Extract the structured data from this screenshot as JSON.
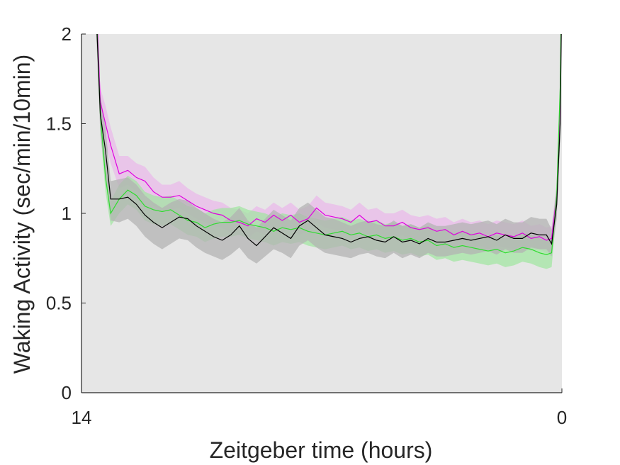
{
  "chart_data": {
    "type": "line",
    "xlabel": "Zeitgeber time (hours)",
    "ylabel": "Waking Activity (sec/min/10min)",
    "xlim": [
      14,
      0
    ],
    "x_reversed": true,
    "ylim": [
      0,
      2
    ],
    "xticks": [
      14,
      0
    ],
    "yticks": [
      0,
      0.5,
      1,
      1.5,
      2
    ],
    "grid": false,
    "legend": "none",
    "background": "#e6e6e6",
    "series": [
      {
        "color": "#e000e0",
        "band_color": "#e9b6ea",
        "x": [
          13.6,
          13.45,
          13.3,
          13.15,
          12.9,
          12.65,
          12.4,
          12.15,
          11.9,
          11.65,
          11.4,
          11.15,
          10.9,
          10.65,
          10.4,
          10.15,
          9.9,
          9.65,
          9.4,
          9.15,
          8.9,
          8.65,
          8.4,
          8.15,
          7.9,
          7.65,
          7.4,
          7.15,
          6.9,
          6.65,
          6.4,
          6.15,
          5.9,
          5.65,
          5.4,
          5.15,
          4.9,
          4.65,
          4.4,
          4.15,
          3.9,
          3.65,
          3.4,
          3.15,
          2.9,
          2.65,
          2.4,
          2.15,
          1.9,
          1.65,
          1.4,
          1.15,
          0.9,
          0.65,
          0.45,
          0.3,
          0.15,
          0.05,
          0.0
        ],
        "values": [
          2.35,
          1.62,
          1.5,
          1.38,
          1.22,
          1.24,
          1.2,
          1.18,
          1.12,
          1.09,
          1.09,
          1.1,
          1.07,
          1.04,
          1.02,
          1.0,
          0.99,
          0.96,
          0.95,
          0.93,
          0.97,
          0.95,
          0.99,
          0.96,
          0.99,
          0.95,
          0.97,
          1.03,
          0.99,
          0.98,
          0.97,
          0.95,
          0.99,
          0.95,
          0.96,
          0.93,
          0.93,
          0.95,
          0.92,
          0.91,
          0.92,
          0.9,
          0.91,
          0.88,
          0.9,
          0.88,
          0.89,
          0.87,
          0.89,
          0.88,
          0.87,
          0.89,
          0.86,
          0.87,
          0.85,
          0.86,
          1.1,
          1.6,
          2.4
        ],
        "lower": [
          2.25,
          1.54,
          1.4,
          1.28,
          1.14,
          1.16,
          1.12,
          1.1,
          1.04,
          1.02,
          1.02,
          1.03,
          1.0,
          0.97,
          0.95,
          0.93,
          0.92,
          0.89,
          0.88,
          0.86,
          0.9,
          0.88,
          0.92,
          0.89,
          0.92,
          0.88,
          0.9,
          0.95,
          0.92,
          0.91,
          0.9,
          0.88,
          0.92,
          0.88,
          0.89,
          0.86,
          0.86,
          0.88,
          0.85,
          0.84,
          0.85,
          0.83,
          0.84,
          0.81,
          0.83,
          0.81,
          0.82,
          0.8,
          0.82,
          0.81,
          0.8,
          0.82,
          0.79,
          0.8,
          0.78,
          0.79,
          1.03,
          1.52,
          2.3
        ],
        "upper": [
          2.45,
          1.7,
          1.6,
          1.48,
          1.32,
          1.32,
          1.28,
          1.26,
          1.2,
          1.16,
          1.16,
          1.18,
          1.14,
          1.11,
          1.09,
          1.07,
          1.06,
          1.03,
          1.02,
          1.0,
          1.04,
          1.02,
          1.06,
          1.03,
          1.06,
          1.02,
          1.04,
          1.1,
          1.06,
          1.05,
          1.04,
          1.02,
          1.06,
          1.02,
          1.03,
          1.0,
          1.0,
          1.02,
          0.99,
          0.98,
          0.99,
          0.97,
          0.98,
          0.95,
          0.97,
          0.95,
          0.96,
          0.94,
          0.96,
          0.95,
          0.94,
          0.96,
          0.93,
          0.94,
          0.92,
          0.93,
          1.17,
          1.68,
          2.5
        ]
      },
      {
        "color": "#2fdc2f",
        "band_color": "#9ee69e",
        "x": [
          13.6,
          13.45,
          13.3,
          13.15,
          12.9,
          12.65,
          12.4,
          12.15,
          11.9,
          11.65,
          11.4,
          11.15,
          10.9,
          10.65,
          10.4,
          10.15,
          9.9,
          9.65,
          9.4,
          9.15,
          8.9,
          8.65,
          8.4,
          8.15,
          7.9,
          7.65,
          7.4,
          7.15,
          6.9,
          6.65,
          6.4,
          6.15,
          5.9,
          5.65,
          5.4,
          5.15,
          4.9,
          4.65,
          4.4,
          4.15,
          3.9,
          3.65,
          3.4,
          3.15,
          2.9,
          2.65,
          2.4,
          2.15,
          1.9,
          1.65,
          1.4,
          1.15,
          0.9,
          0.65,
          0.45,
          0.3,
          0.15,
          0.05,
          0.0
        ],
        "values": [
          2.3,
          1.55,
          1.2,
          1.0,
          1.08,
          1.13,
          1.1,
          1.04,
          1.02,
          1.01,
          1.02,
          0.99,
          0.96,
          0.95,
          0.92,
          0.94,
          0.95,
          0.95,
          0.96,
          0.94,
          0.93,
          0.92,
          0.9,
          0.92,
          0.91,
          0.92,
          0.9,
          0.89,
          0.88,
          0.89,
          0.9,
          0.88,
          0.89,
          0.87,
          0.88,
          0.86,
          0.87,
          0.85,
          0.86,
          0.84,
          0.85,
          0.82,
          0.83,
          0.81,
          0.82,
          0.81,
          0.8,
          0.79,
          0.8,
          0.78,
          0.79,
          0.81,
          0.8,
          0.78,
          0.77,
          0.78,
          1.1,
          1.7,
          2.4
        ],
        "lower": [
          2.2,
          1.46,
          1.12,
          0.93,
          1.0,
          1.05,
          1.02,
          0.96,
          0.94,
          0.93,
          0.94,
          0.91,
          0.88,
          0.87,
          0.84,
          0.86,
          0.87,
          0.87,
          0.88,
          0.86,
          0.85,
          0.84,
          0.82,
          0.84,
          0.83,
          0.84,
          0.82,
          0.81,
          0.8,
          0.81,
          0.82,
          0.8,
          0.81,
          0.79,
          0.8,
          0.78,
          0.79,
          0.77,
          0.78,
          0.76,
          0.77,
          0.74,
          0.75,
          0.73,
          0.74,
          0.73,
          0.72,
          0.71,
          0.72,
          0.7,
          0.71,
          0.73,
          0.72,
          0.7,
          0.69,
          0.7,
          1.02,
          1.62,
          2.3
        ],
        "upper": [
          2.4,
          1.64,
          1.28,
          1.07,
          1.16,
          1.21,
          1.18,
          1.12,
          1.1,
          1.09,
          1.1,
          1.07,
          1.04,
          1.03,
          1.0,
          1.02,
          1.03,
          1.03,
          1.04,
          1.02,
          1.01,
          1.0,
          0.98,
          1.0,
          0.99,
          1.0,
          0.98,
          0.97,
          0.96,
          0.97,
          0.98,
          0.96,
          0.97,
          0.95,
          0.96,
          0.94,
          0.95,
          0.93,
          0.94,
          0.92,
          0.93,
          0.9,
          0.91,
          0.89,
          0.9,
          0.89,
          0.88,
          0.87,
          0.88,
          0.86,
          0.87,
          0.89,
          0.88,
          0.86,
          0.85,
          0.86,
          1.18,
          1.78,
          2.5
        ]
      },
      {
        "color": "#000000",
        "band_color": "#b3b3b3",
        "x": [
          13.6,
          13.45,
          13.3,
          13.15,
          12.9,
          12.65,
          12.4,
          12.15,
          11.9,
          11.65,
          11.4,
          11.15,
          10.9,
          10.65,
          10.4,
          10.15,
          9.9,
          9.65,
          9.4,
          9.15,
          8.9,
          8.65,
          8.4,
          8.15,
          7.9,
          7.65,
          7.4,
          7.15,
          6.9,
          6.65,
          6.4,
          6.15,
          5.9,
          5.65,
          5.4,
          5.15,
          4.9,
          4.65,
          4.4,
          4.15,
          3.9,
          3.65,
          3.4,
          3.15,
          2.9,
          2.65,
          2.4,
          2.15,
          1.9,
          1.65,
          1.4,
          1.15,
          0.9,
          0.65,
          0.45,
          0.3,
          0.15,
          0.05,
          0.0
        ],
        "values": [
          2.25,
          1.55,
          1.35,
          1.08,
          1.08,
          1.09,
          1.05,
          0.99,
          0.95,
          0.92,
          0.95,
          0.98,
          0.97,
          0.93,
          0.9,
          0.87,
          0.85,
          0.88,
          0.93,
          0.86,
          0.82,
          0.87,
          0.92,
          0.89,
          0.86,
          0.93,
          0.96,
          0.92,
          0.88,
          0.87,
          0.86,
          0.84,
          0.86,
          0.87,
          0.85,
          0.84,
          0.87,
          0.84,
          0.85,
          0.83,
          0.86,
          0.84,
          0.84,
          0.85,
          0.86,
          0.85,
          0.86,
          0.87,
          0.85,
          0.88,
          0.86,
          0.86,
          0.89,
          0.88,
          0.88,
          0.83,
          1.05,
          1.5,
          2.3
        ],
        "lower": [
          2.12,
          1.44,
          1.2,
          0.96,
          0.95,
          0.97,
          0.93,
          0.87,
          0.83,
          0.8,
          0.83,
          0.86,
          0.85,
          0.81,
          0.78,
          0.76,
          0.74,
          0.77,
          0.81,
          0.75,
          0.72,
          0.76,
          0.8,
          0.78,
          0.75,
          0.82,
          0.85,
          0.81,
          0.78,
          0.77,
          0.76,
          0.75,
          0.77,
          0.78,
          0.76,
          0.75,
          0.78,
          0.75,
          0.77,
          0.75,
          0.78,
          0.76,
          0.76,
          0.77,
          0.78,
          0.77,
          0.78,
          0.79,
          0.77,
          0.8,
          0.78,
          0.78,
          0.81,
          0.8,
          0.8,
          0.76,
          0.97,
          1.4,
          2.2
        ],
        "upper": [
          2.38,
          1.66,
          1.48,
          1.18,
          1.19,
          1.2,
          1.16,
          1.1,
          1.06,
          1.03,
          1.06,
          1.08,
          1.07,
          1.03,
          1.0,
          0.97,
          0.95,
          0.98,
          1.03,
          0.96,
          0.92,
          0.97,
          1.02,
          0.99,
          0.96,
          1.03,
          1.06,
          1.02,
          0.98,
          0.97,
          0.95,
          0.93,
          0.95,
          0.96,
          0.94,
          0.93,
          0.96,
          0.93,
          0.94,
          0.92,
          0.95,
          0.93,
          0.93,
          0.94,
          0.95,
          0.94,
          0.95,
          0.96,
          0.94,
          0.97,
          0.95,
          0.95,
          0.98,
          0.97,
          0.97,
          0.91,
          1.13,
          1.6,
          2.4
        ]
      }
    ]
  }
}
